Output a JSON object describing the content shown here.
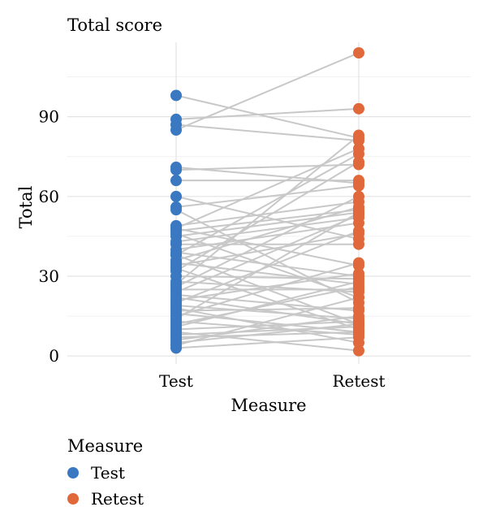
{
  "chart_data": {
    "type": "line",
    "title": "Total score",
    "xlabel": "Measure",
    "ylabel": "Total",
    "categories": [
      "Test",
      "Retest"
    ],
    "ylim": [
      -3,
      118
    ],
    "yticks": [
      0,
      30,
      60,
      90
    ],
    "grid": true,
    "legend": {
      "title": "Measure",
      "placement": "bottom-left",
      "items": [
        {
          "label": "Test",
          "color": "#3A78C2"
        },
        {
          "label": "Retest",
          "color": "#E0683A"
        }
      ]
    },
    "line_color": "#C8C8C8",
    "pairs": [
      [
        98,
        82
      ],
      [
        89,
        93
      ],
      [
        87,
        81
      ],
      [
        85,
        114
      ],
      [
        71,
        65
      ],
      [
        70,
        72
      ],
      [
        66,
        66
      ],
      [
        60,
        44
      ],
      [
        56,
        64
      ],
      [
        55,
        20
      ],
      [
        49,
        58
      ],
      [
        48,
        78
      ],
      [
        48,
        34
      ],
      [
        47,
        55
      ],
      [
        46,
        22
      ],
      [
        45,
        54
      ],
      [
        43,
        52
      ],
      [
        42,
        42
      ],
      [
        40,
        50
      ],
      [
        39,
        30
      ],
      [
        38,
        76
      ],
      [
        38,
        12
      ],
      [
        36,
        56
      ],
      [
        35,
        27
      ],
      [
        34,
        46
      ],
      [
        33,
        10
      ],
      [
        32,
        73
      ],
      [
        30,
        29
      ],
      [
        28,
        24
      ],
      [
        27,
        83
      ],
      [
        26,
        60
      ],
      [
        25,
        25
      ],
      [
        24,
        53
      ],
      [
        23,
        17
      ],
      [
        22,
        12
      ],
      [
        21,
        31
      ],
      [
        20,
        47
      ],
      [
        19,
        14
      ],
      [
        18,
        5
      ],
      [
        17,
        18
      ],
      [
        16,
        9
      ],
      [
        15,
        35
      ],
      [
        14,
        54
      ],
      [
        13,
        8
      ],
      [
        12,
        26
      ],
      [
        11,
        28
      ],
      [
        10,
        13
      ],
      [
        9,
        2
      ],
      [
        8,
        11
      ],
      [
        7,
        9
      ],
      [
        6,
        15
      ],
      [
        5,
        12
      ],
      [
        4,
        22
      ],
      [
        3,
        7
      ]
    ]
  }
}
